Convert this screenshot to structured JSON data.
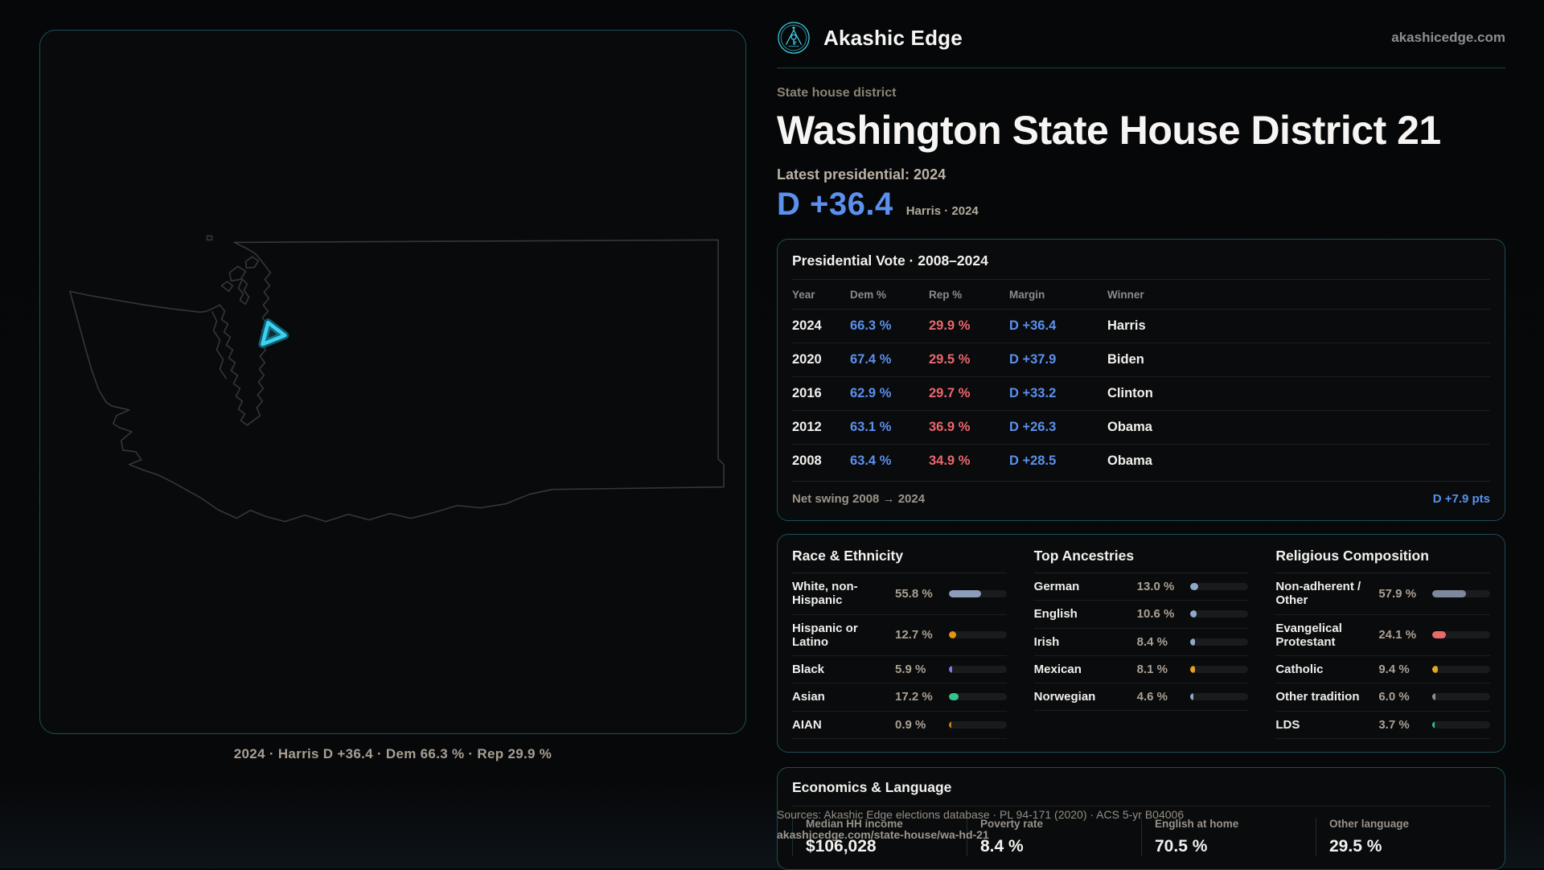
{
  "site": {
    "brand": "Akashic Edge",
    "domain": "akashicedge.com"
  },
  "header": {
    "kicker": "State house district",
    "title": "Washington State House District 21",
    "latest_label": "Latest presidential: 2024",
    "margin_value": "D +36.4",
    "margin_note": "Harris · 2024"
  },
  "map": {
    "caption": "2024 · Harris D +36.4 · Dem 66.3 % · Rep 29.9 %",
    "highlight_color": "#3cd2ee"
  },
  "pres_table": {
    "title": "Presidential Vote · 2008–2024",
    "columns": [
      "Year",
      "Dem %",
      "Rep %",
      "Margin",
      "Winner"
    ],
    "rows": [
      {
        "year": "2024",
        "dem": "66.3 %",
        "rep": "29.9 %",
        "margin": "D +36.4",
        "winner": "Harris"
      },
      {
        "year": "2020",
        "dem": "67.4 %",
        "rep": "29.5 %",
        "margin": "D +37.9",
        "winner": "Biden"
      },
      {
        "year": "2016",
        "dem": "62.9 %",
        "rep": "29.7 %",
        "margin": "D +33.2",
        "winner": "Clinton"
      },
      {
        "year": "2012",
        "dem": "63.1 %",
        "rep": "36.9 %",
        "margin": "D +26.3",
        "winner": "Obama"
      },
      {
        "year": "2008",
        "dem": "63.4 %",
        "rep": "34.9 %",
        "margin": "D +28.5",
        "winner": "Obama"
      }
    ],
    "net_swing_label": "Net swing 2008 → 2024",
    "net_swing_value": "D +7.9 pts"
  },
  "demographics": {
    "race": {
      "title": "Race & Ethnicity",
      "items": [
        {
          "label": "White, non-Hispanic",
          "value": "55.8 %",
          "pct": 55.8,
          "color": "#8b9db9"
        },
        {
          "label": "Hispanic or Latino",
          "value": "12.7 %",
          "pct": 12.7,
          "color": "#e6940f"
        },
        {
          "label": "Black",
          "value": "5.9 %",
          "pct": 5.9,
          "color": "#8a6ff0"
        },
        {
          "label": "Asian",
          "value": "17.2 %",
          "pct": 17.2,
          "color": "#35c28c"
        },
        {
          "label": "AIAN",
          "value": "0.9 %",
          "pct": 0.9,
          "color": "#c47c1a"
        }
      ]
    },
    "ancestries": {
      "title": "Top Ancestries",
      "items": [
        {
          "label": "German",
          "value": "13.0 %",
          "pct": 13.0,
          "color": "#8fa9c9"
        },
        {
          "label": "English",
          "value": "10.6 %",
          "pct": 10.6,
          "color": "#8fa9c9"
        },
        {
          "label": "Irish",
          "value": "8.4 %",
          "pct": 8.4,
          "color": "#8fa9c9"
        },
        {
          "label": "Mexican",
          "value": "8.1 %",
          "pct": 8.1,
          "color": "#e8a219"
        },
        {
          "label": "Norwegian",
          "value": "4.6 %",
          "pct": 4.6,
          "color": "#8fa9c9"
        }
      ]
    },
    "religion": {
      "title": "Religious Composition",
      "items": [
        {
          "label": "Non-adherent / Other",
          "value": "57.9 %",
          "pct": 57.9,
          "color": "#7e889c"
        },
        {
          "label": "Evangelical Protestant",
          "value": "24.1 %",
          "pct": 24.1,
          "color": "#e86a6a"
        },
        {
          "label": "Catholic",
          "value": "9.4 %",
          "pct": 9.4,
          "color": "#e0a91e"
        },
        {
          "label": "Other tradition",
          "value": "6.0 %",
          "pct": 6.0,
          "color": "#8a8f98"
        },
        {
          "label": "LDS",
          "value": "3.7 %",
          "pct": 3.7,
          "color": "#2bbf9e"
        }
      ]
    }
  },
  "economics": {
    "title": "Economics & Language",
    "stats": [
      {
        "label": "Median HH income",
        "value": "$106,028"
      },
      {
        "label": "Poverty rate",
        "value": "8.4 %"
      },
      {
        "label": "English at home",
        "value": "70.5 %"
      },
      {
        "label": "Other language",
        "value": "29.5 %"
      }
    ]
  },
  "footer": {
    "sources": "Sources: Akashic Edge elections database · PL 94-171 (2020) · ACS 5-yr B04006",
    "url": "akashicedge.com/state-house/wa-hd-21"
  },
  "palette": {
    "accent_cyan": "#35c8e8",
    "dem_blue": "#5b90ee",
    "rep_red": "#ea676d",
    "card_border": "#1d4d57"
  }
}
